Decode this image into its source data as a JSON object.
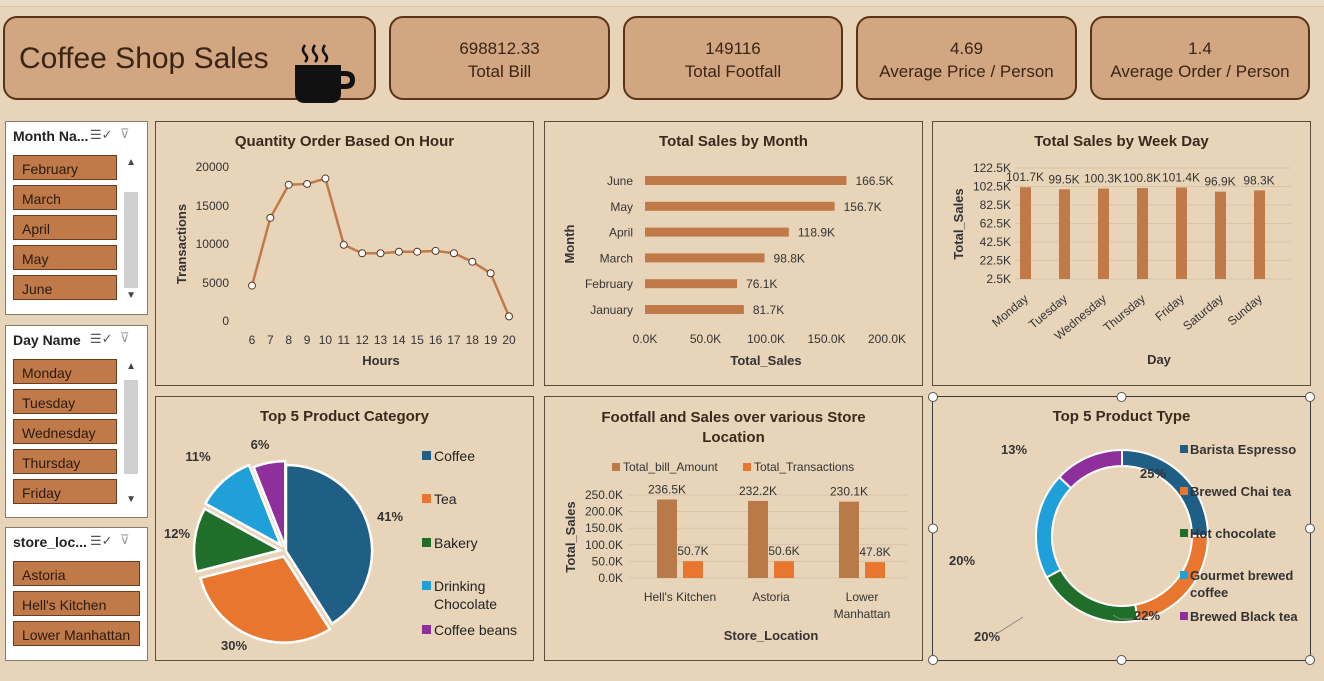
{
  "header": {
    "title": "Coffee Shop Sales",
    "kpis": [
      {
        "value": "698812.33",
        "label": "Total Bill"
      },
      {
        "value": "149116",
        "label": "Total Footfall"
      },
      {
        "value": "4.69",
        "label": "Average Price / Person"
      },
      {
        "value": "1.4",
        "label": "Average Order / Person"
      }
    ]
  },
  "slicers": {
    "month": {
      "title": "Month Na...",
      "items": [
        "February",
        "March",
        "April",
        "May",
        "June"
      ]
    },
    "day": {
      "title": "Day Name",
      "items": [
        "Monday",
        "Tuesday",
        "Wednesday",
        "Thursday",
        "Friday"
      ]
    },
    "store": {
      "title": "store_loc...",
      "items": [
        "Astoria",
        "Hell's Kitchen",
        "Lower Manhattan"
      ]
    }
  },
  "colors": {
    "bar": "#c07a4a",
    "coffee": "#1f5f85",
    "tea": "#e8762f",
    "bakery": "#1f6e2a",
    "drinking": "#1fa0d8",
    "beans": "#8e2f9c",
    "bill": "#b87a48",
    "trans": "#e8762f"
  },
  "chart_data": [
    {
      "type": "line",
      "title": "Quantity Order Based On Hour",
      "xlabel": "Hours",
      "ylabel": "Transactions",
      "x": [
        6,
        7,
        8,
        9,
        10,
        11,
        12,
        13,
        14,
        15,
        16,
        17,
        18,
        19,
        20
      ],
      "y": [
        4600,
        13400,
        17700,
        17800,
        18500,
        9900,
        8800,
        8800,
        9000,
        9000,
        9100,
        8800,
        7700,
        6200,
        600
      ],
      "yticks": [
        "20000",
        "15000",
        "10000",
        "5000",
        "0"
      ],
      "ylim": [
        0,
        20000
      ]
    },
    {
      "type": "bar",
      "title": "Total Sales by Month",
      "xlabel": "Total_Sales",
      "ylabel": "Month",
      "categories": [
        "June",
        "May",
        "April",
        "March",
        "February",
        "January"
      ],
      "values": [
        166500,
        156700,
        118900,
        98800,
        76100,
        81700
      ],
      "labels": [
        "166.5K",
        "156.7K",
        "118.9K",
        "98.8K",
        "76.1K",
        "81.7K"
      ],
      "xticks": [
        "0.0K",
        "50.0K",
        "100.0K",
        "150.0K",
        "200.0K"
      ],
      "xlim": [
        0,
        200000
      ]
    },
    {
      "type": "bar",
      "title": "Total Sales by Week Day",
      "xlabel": "Day",
      "ylabel": "Total_Sales",
      "categories": [
        "Monday",
        "Tuesday",
        "Wednesday",
        "Thursday",
        "Friday",
        "Saturday",
        "Sunday"
      ],
      "values": [
        101700,
        99500,
        100300,
        100800,
        101400,
        96900,
        98300
      ],
      "labels": [
        "101.7K",
        "99.5K",
        "100.3K",
        "100.8K",
        "101.4K",
        "96.9K",
        "98.3K"
      ],
      "yticks": [
        "122.5K",
        "102.5K",
        "82.5K",
        "62.5K",
        "42.5K",
        "22.5K",
        "2.5K"
      ],
      "ylim": [
        2500,
        122500
      ]
    },
    {
      "type": "pie",
      "title": "Top 5 Product Category",
      "slices": [
        {
          "name": "Coffee",
          "pct": 41,
          "label": "41%"
        },
        {
          "name": "Tea",
          "pct": 30,
          "label": "30%"
        },
        {
          "name": "Bakery",
          "pct": 12,
          "label": "12%"
        },
        {
          "name": "Drinking Chocolate",
          "pct": 11,
          "label": "11%"
        },
        {
          "name": "Coffee beans",
          "pct": 6,
          "label": "6%"
        }
      ]
    },
    {
      "type": "bar",
      "title": "Footfall and Sales over various Store Location",
      "xlabel": "Store_Location",
      "ylabel": "Total_Sales",
      "categories": [
        "Hell's Kitchen",
        "Astoria",
        "Lower Manhattan"
      ],
      "series": [
        {
          "name": "Total_bill_Amount",
          "values": [
            236500,
            232200,
            230100
          ],
          "labels": [
            "236.5K",
            "232.2K",
            "230.1K"
          ]
        },
        {
          "name": "Total_Transactions",
          "values": [
            50700,
            50600,
            47800
          ],
          "labels": [
            "50.7K",
            "50.6K",
            "47.8K"
          ]
        }
      ],
      "yticks": [
        "250.0K",
        "200.0K",
        "150.0K",
        "100.0K",
        "50.0K",
        "0.0K"
      ],
      "ylim": [
        0,
        250000
      ]
    },
    {
      "type": "pie",
      "title": "Top 5 Product Type",
      "slices": [
        {
          "name": "Barista Espresso",
          "pct": 25,
          "label": "25%"
        },
        {
          "name": "Brewed Chai tea",
          "pct": 22,
          "label": "22%"
        },
        {
          "name": "Hot chocolate",
          "pct": 20,
          "label": "20%"
        },
        {
          "name": "Gourmet brewed coffee",
          "pct": 20,
          "label": "20%"
        },
        {
          "name": "Brewed Black tea",
          "pct": 13,
          "label": "13%"
        }
      ]
    }
  ]
}
